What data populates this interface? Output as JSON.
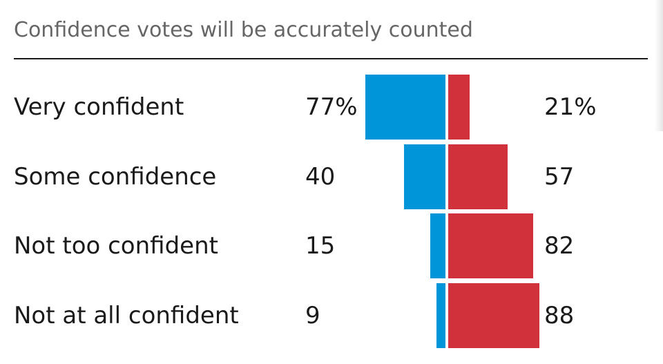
{
  "chart_data": {
    "type": "bar",
    "title": "Confidence votes will be accurately counted",
    "categories": [
      "Very confident",
      "Some confidence",
      "Not too confident",
      "Not at all confident"
    ],
    "series": [
      {
        "values": [
          77,
          40,
          15,
          9
        ],
        "color": "#0094d8"
      },
      {
        "values": [
          21,
          57,
          82,
          88
        ],
        "color": "#d1313b"
      }
    ],
    "left_labels": [
      "77%",
      "40",
      "15",
      "9"
    ],
    "right_labels": [
      "21%",
      "57",
      "82",
      "88"
    ]
  }
}
